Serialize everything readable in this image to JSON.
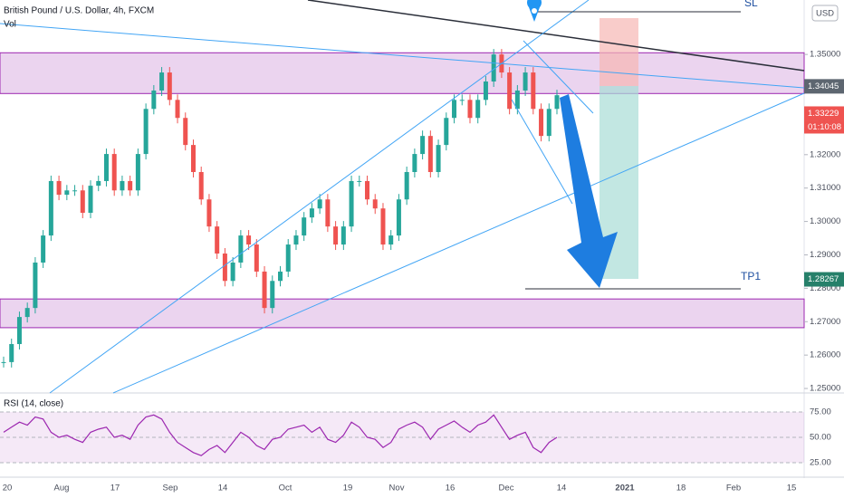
{
  "chart_data": {
    "type": "candlestick",
    "title": "British Pound / U.S. Dollar, 4h, FXCM",
    "volume_label": "Vol",
    "currency": "USD",
    "values": [
      1.2579,
      1.2633,
      1.2714,
      1.2741,
      1.2877,
      1.2958,
      1.3121,
      1.308,
      1.3093,
      1.3093,
      1.3026,
      1.3107,
      1.3121,
      1.3202,
      1.3093,
      1.3121,
      1.3093,
      1.3202,
      1.3337,
      1.3392,
      1.3446,
      1.3364,
      1.331,
      1.3229,
      1.3148,
      1.3066,
      1.2985,
      1.2904,
      1.2822,
      1.2877,
      1.2958,
      1.2931,
      1.285,
      1.2741,
      1.2822,
      1.285,
      1.2931,
      1.2958,
      1.3012,
      1.3039,
      1.3066,
      1.2985,
      1.2931,
      1.2985,
      1.3121,
      1.3121,
      1.3066,
      1.3039,
      1.2931,
      1.2958,
      1.3066,
      1.3148,
      1.3202,
      1.3256,
      1.3148,
      1.3229,
      1.331,
      1.3364,
      1.3364,
      1.331,
      1.3364,
      1.3419,
      1.35,
      1.3446,
      1.3337,
      1.3392,
      1.3446,
      1.3337,
      1.3256,
      1.3337,
      1.3378
    ],
    "up_color": "#26a69a",
    "down_color": "#ef5350",
    "ylim": [
      1.2492,
      1.3663
    ],
    "yticks": [
      {
        "value": 1.25,
        "label": "1.25000"
      },
      {
        "value": 1.26,
        "label": "1.26000"
      },
      {
        "value": 1.27,
        "label": "1.27000"
      },
      {
        "value": 1.28,
        "label": "1.28000"
      },
      {
        "value": 1.29,
        "label": "1.29000"
      },
      {
        "value": 1.3,
        "label": "1.30000"
      },
      {
        "value": 1.31,
        "label": "1.31000"
      },
      {
        "value": 1.32,
        "label": "1.32000"
      },
      {
        "value": 1.33,
        "label": "1.33000"
      },
      {
        "value": 1.34,
        "label": "1.34000"
      },
      {
        "value": 1.35,
        "label": "1.35000"
      }
    ],
    "xtick_labels": [
      "20",
      "Aug",
      "17",
      "Sep",
      "14",
      "Oct",
      "19",
      "Nov",
      "16",
      "Dec",
      "14",
      "2021",
      "18",
      "Feb",
      "15"
    ],
    "zones": [
      [
        1.3383,
        1.3505
      ],
      [
        1.2682,
        1.2768
      ]
    ],
    "zone_color": "#9c27b0",
    "price_labels": [
      {
        "value": 1.34045,
        "label": "1.34045",
        "color": "#5d6670"
      },
      {
        "value": 1.33229,
        "label": "1.33229",
        "color": "#ef5350"
      },
      {
        "value": 1.28267,
        "label": "1.28267",
        "color": "#26806a"
      }
    ],
    "countdown": "01:10:08",
    "annotations": {
      "stop_loss": "SL",
      "take_profit": "TP1"
    },
    "rsi": {
      "label": "RSI (14, close)",
      "color": "#9c27b0",
      "values": [
        55,
        60,
        65,
        62,
        70,
        68,
        55,
        50,
        52,
        48,
        45,
        55,
        58,
        60,
        50,
        52,
        48,
        62,
        70,
        72,
        68,
        55,
        45,
        40,
        35,
        32,
        38,
        42,
        35,
        45,
        55,
        50,
        42,
        38,
        48,
        50,
        58,
        60,
        62,
        55,
        60,
        48,
        45,
        52,
        65,
        60,
        50,
        48,
        40,
        45,
        58,
        62,
        65,
        60,
        48,
        58,
        62,
        66,
        60,
        55,
        62,
        65,
        72,
        60,
        48,
        52,
        55,
        40,
        35,
        45,
        50
      ],
      "ylim": [
        17,
        91
      ],
      "yticks": [
        {
          "value": 25,
          "label": "25.00"
        },
        {
          "value": 50,
          "label": "50.00"
        },
        {
          "value": 75,
          "label": "75.00"
        }
      ]
    }
  }
}
